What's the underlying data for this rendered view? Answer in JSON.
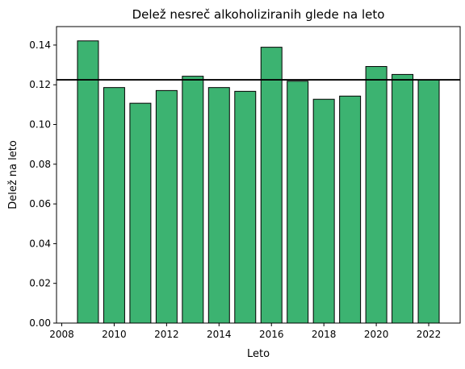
{
  "chart_data": {
    "type": "bar",
    "title": "Delež nesreč alkoholiziranih glede na leto",
    "xlabel": "Leto",
    "ylabel": "Delež na leto",
    "x": [
      2009,
      2010,
      2011,
      2012,
      2013,
      2014,
      2015,
      2016,
      2017,
      2018,
      2019,
      2020,
      2021,
      2022
    ],
    "values": [
      0.1421,
      0.1186,
      0.1107,
      0.1171,
      0.1243,
      0.1186,
      0.1167,
      0.1389,
      0.1218,
      0.1127,
      0.1143,
      0.1292,
      0.1252,
      0.1224
    ],
    "xlim": [
      2007.8,
      2023.2
    ],
    "ylim": [
      0,
      0.1493
    ],
    "xticks": [
      2008,
      2010,
      2012,
      2014,
      2016,
      2018,
      2020,
      2022
    ],
    "yticks": [
      0.0,
      0.02,
      0.04,
      0.06,
      0.08,
      0.1,
      0.12,
      0.14
    ],
    "reference_line": 0.1225,
    "grid": false,
    "bar_color": "#3cb371",
    "edge_color": "#000000"
  }
}
